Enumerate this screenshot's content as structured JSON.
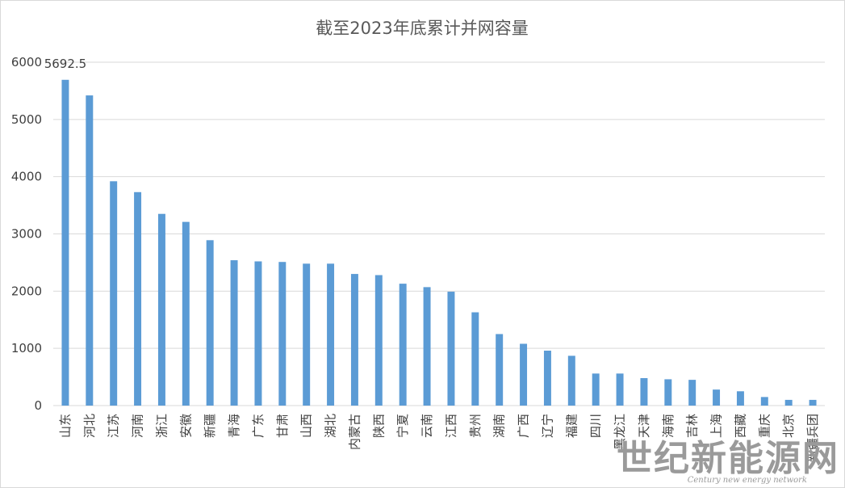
{
  "chart_data": {
    "type": "bar",
    "title": "截至2023年底累计并网容量",
    "xlabel": "",
    "ylabel": "",
    "ylim": [
      0,
      6000
    ],
    "yticks": [
      0,
      1000,
      2000,
      3000,
      4000,
      5000,
      6000
    ],
    "grid": true,
    "legend": "none",
    "bar_color": "#5b9bd5",
    "categories": [
      "山东",
      "河北",
      "江苏",
      "河南",
      "浙江",
      "安徽",
      "新疆",
      "青海",
      "广东",
      "甘肃",
      "山西",
      "湖北",
      "内蒙古",
      "陕西",
      "宁夏",
      "云南",
      "江西",
      "贵州",
      "湖南",
      "广西",
      "辽宁",
      "福建",
      "四川",
      "黑龙江",
      "天津",
      "海南",
      "吉林",
      "上海",
      "西藏",
      "重庆",
      "北京",
      "新疆兵团"
    ],
    "values": [
      5692.5,
      5420,
      3920,
      3730,
      3350,
      3210,
      2890,
      2540,
      2520,
      2510,
      2480,
      2480,
      2300,
      2280,
      2130,
      2070,
      1990,
      1630,
      1250,
      1080,
      960,
      870,
      560,
      560,
      480,
      460,
      450,
      280,
      250,
      150,
      100,
      100
    ],
    "data_labels": [
      {
        "category": "山东",
        "text": "5692.5"
      }
    ]
  },
  "watermark": {
    "main_text": "世纪新能源网",
    "sub_text": "Century new energy network"
  }
}
